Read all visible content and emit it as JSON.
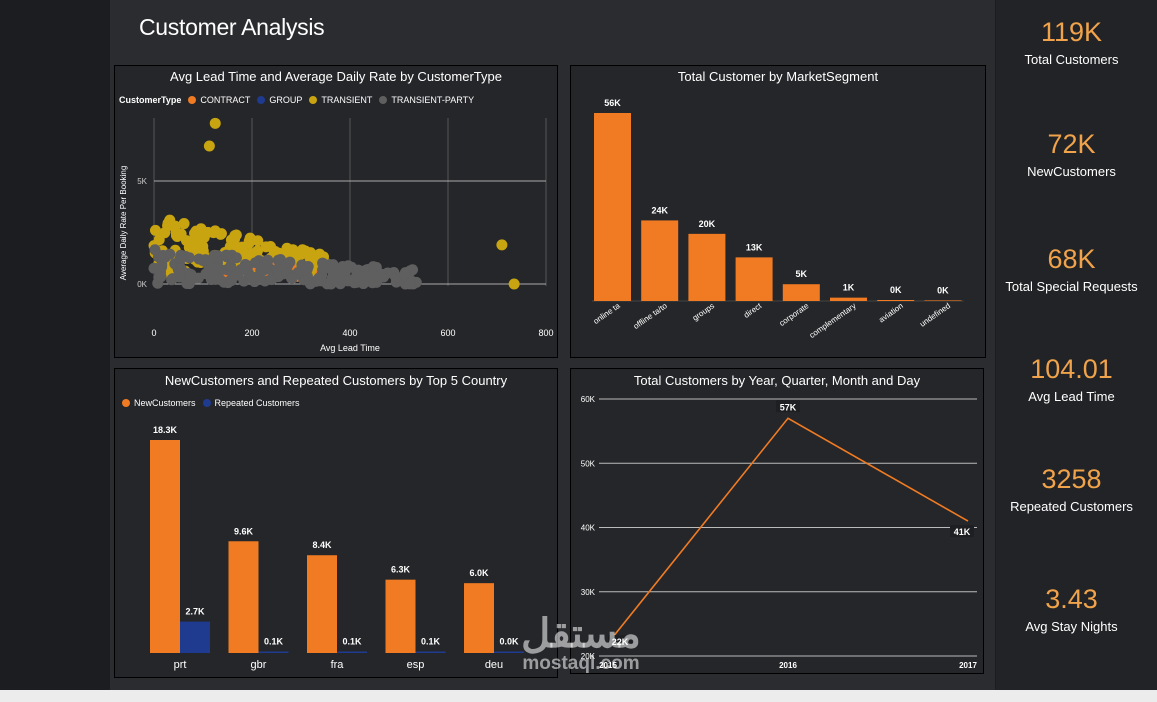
{
  "page": {
    "title": "Customer Analysis"
  },
  "kpis": [
    {
      "value": "119K",
      "label": "Total Customers"
    },
    {
      "value": "72K",
      "label": "NewCustomers"
    },
    {
      "value": "68K",
      "label": "Total Special Requests"
    },
    {
      "value": "104.01",
      "label": "Avg Lead Time"
    },
    {
      "value": "3258",
      "label": "Repeated Customers"
    },
    {
      "value": "3.43",
      "label": "Avg Stay Nights"
    }
  ],
  "colors": {
    "orange": "#f07b23",
    "blue": "#1f3b8f",
    "yellow": "#c9a411",
    "gray": "#5f5f5f",
    "kpi": "#f0a34a"
  },
  "watermark": {
    "arabic": "مستقل",
    "latin": "mostaql.com"
  },
  "chart_data": [
    {
      "type": "scatter",
      "title": "Avg Lead Time and Average Daily Rate by CustomerType",
      "xlabel": "Avg Lead Time",
      "ylabel": "Average Daily Rate Per Booking",
      "xlim": [
        0,
        800
      ],
      "ylim": [
        -1000,
        9000
      ],
      "xticks": [
        "0",
        "200",
        "400",
        "600",
        "800"
      ],
      "yticks": [
        "0K",
        "5K"
      ],
      "legend_title": "CustomerType",
      "legend": [
        "CONTRACT",
        "GROUP",
        "TRANSIENT",
        "TRANSIENT-PARTY"
      ],
      "highlight_points": [
        {
          "series": "TRANSIENT",
          "x": 125,
          "y": 7800
        },
        {
          "series": "TRANSIENT",
          "x": 113,
          "y": 6700
        },
        {
          "series": "TRANSIENT",
          "x": 710,
          "y": 1900
        },
        {
          "series": "TRANSIENT",
          "x": 735,
          "y": 0
        }
      ]
    },
    {
      "type": "bar",
      "title": "Total Customer by MarketSegment",
      "categories": [
        "online ta",
        "offline ta/to",
        "groups",
        "direct",
        "corporate",
        "complementary",
        "aviation",
        "undefined"
      ],
      "values": [
        56,
        24,
        20,
        13,
        5,
        1,
        0.2,
        0
      ],
      "data_labels": [
        "56K",
        "24K",
        "20K",
        "13K",
        "5K",
        "1K",
        "0K",
        "0K"
      ],
      "unit": "K"
    },
    {
      "type": "bar",
      "title": "NewCustomers and Repeated Customers by Top 5 Country",
      "categories": [
        "prt",
        "gbr",
        "fra",
        "esp",
        "deu"
      ],
      "series": [
        {
          "name": "NewCustomers",
          "values": [
            18.3,
            9.6,
            8.4,
            6.3,
            6.0
          ],
          "labels": [
            "18.3K",
            "9.6K",
            "8.4K",
            "6.3K",
            "6.0K"
          ]
        },
        {
          "name": "Repeated Customers",
          "values": [
            2.7,
            0.1,
            0.1,
            0.1,
            0.0
          ],
          "labels": [
            "2.7K",
            "0.1K",
            "0.1K",
            "0.1K",
            "0.0K"
          ]
        }
      ]
    },
    {
      "type": "line",
      "title": "Total Customers by Year, Quarter, Month and Day",
      "x": [
        "2015",
        "2016",
        "2017"
      ],
      "values": [
        22,
        57,
        41
      ],
      "data_labels": [
        "22K",
        "57K",
        "41K"
      ],
      "ylim": [
        20,
        60
      ],
      "yticks": [
        "20K",
        "30K",
        "40K",
        "50K",
        "60K"
      ]
    }
  ]
}
